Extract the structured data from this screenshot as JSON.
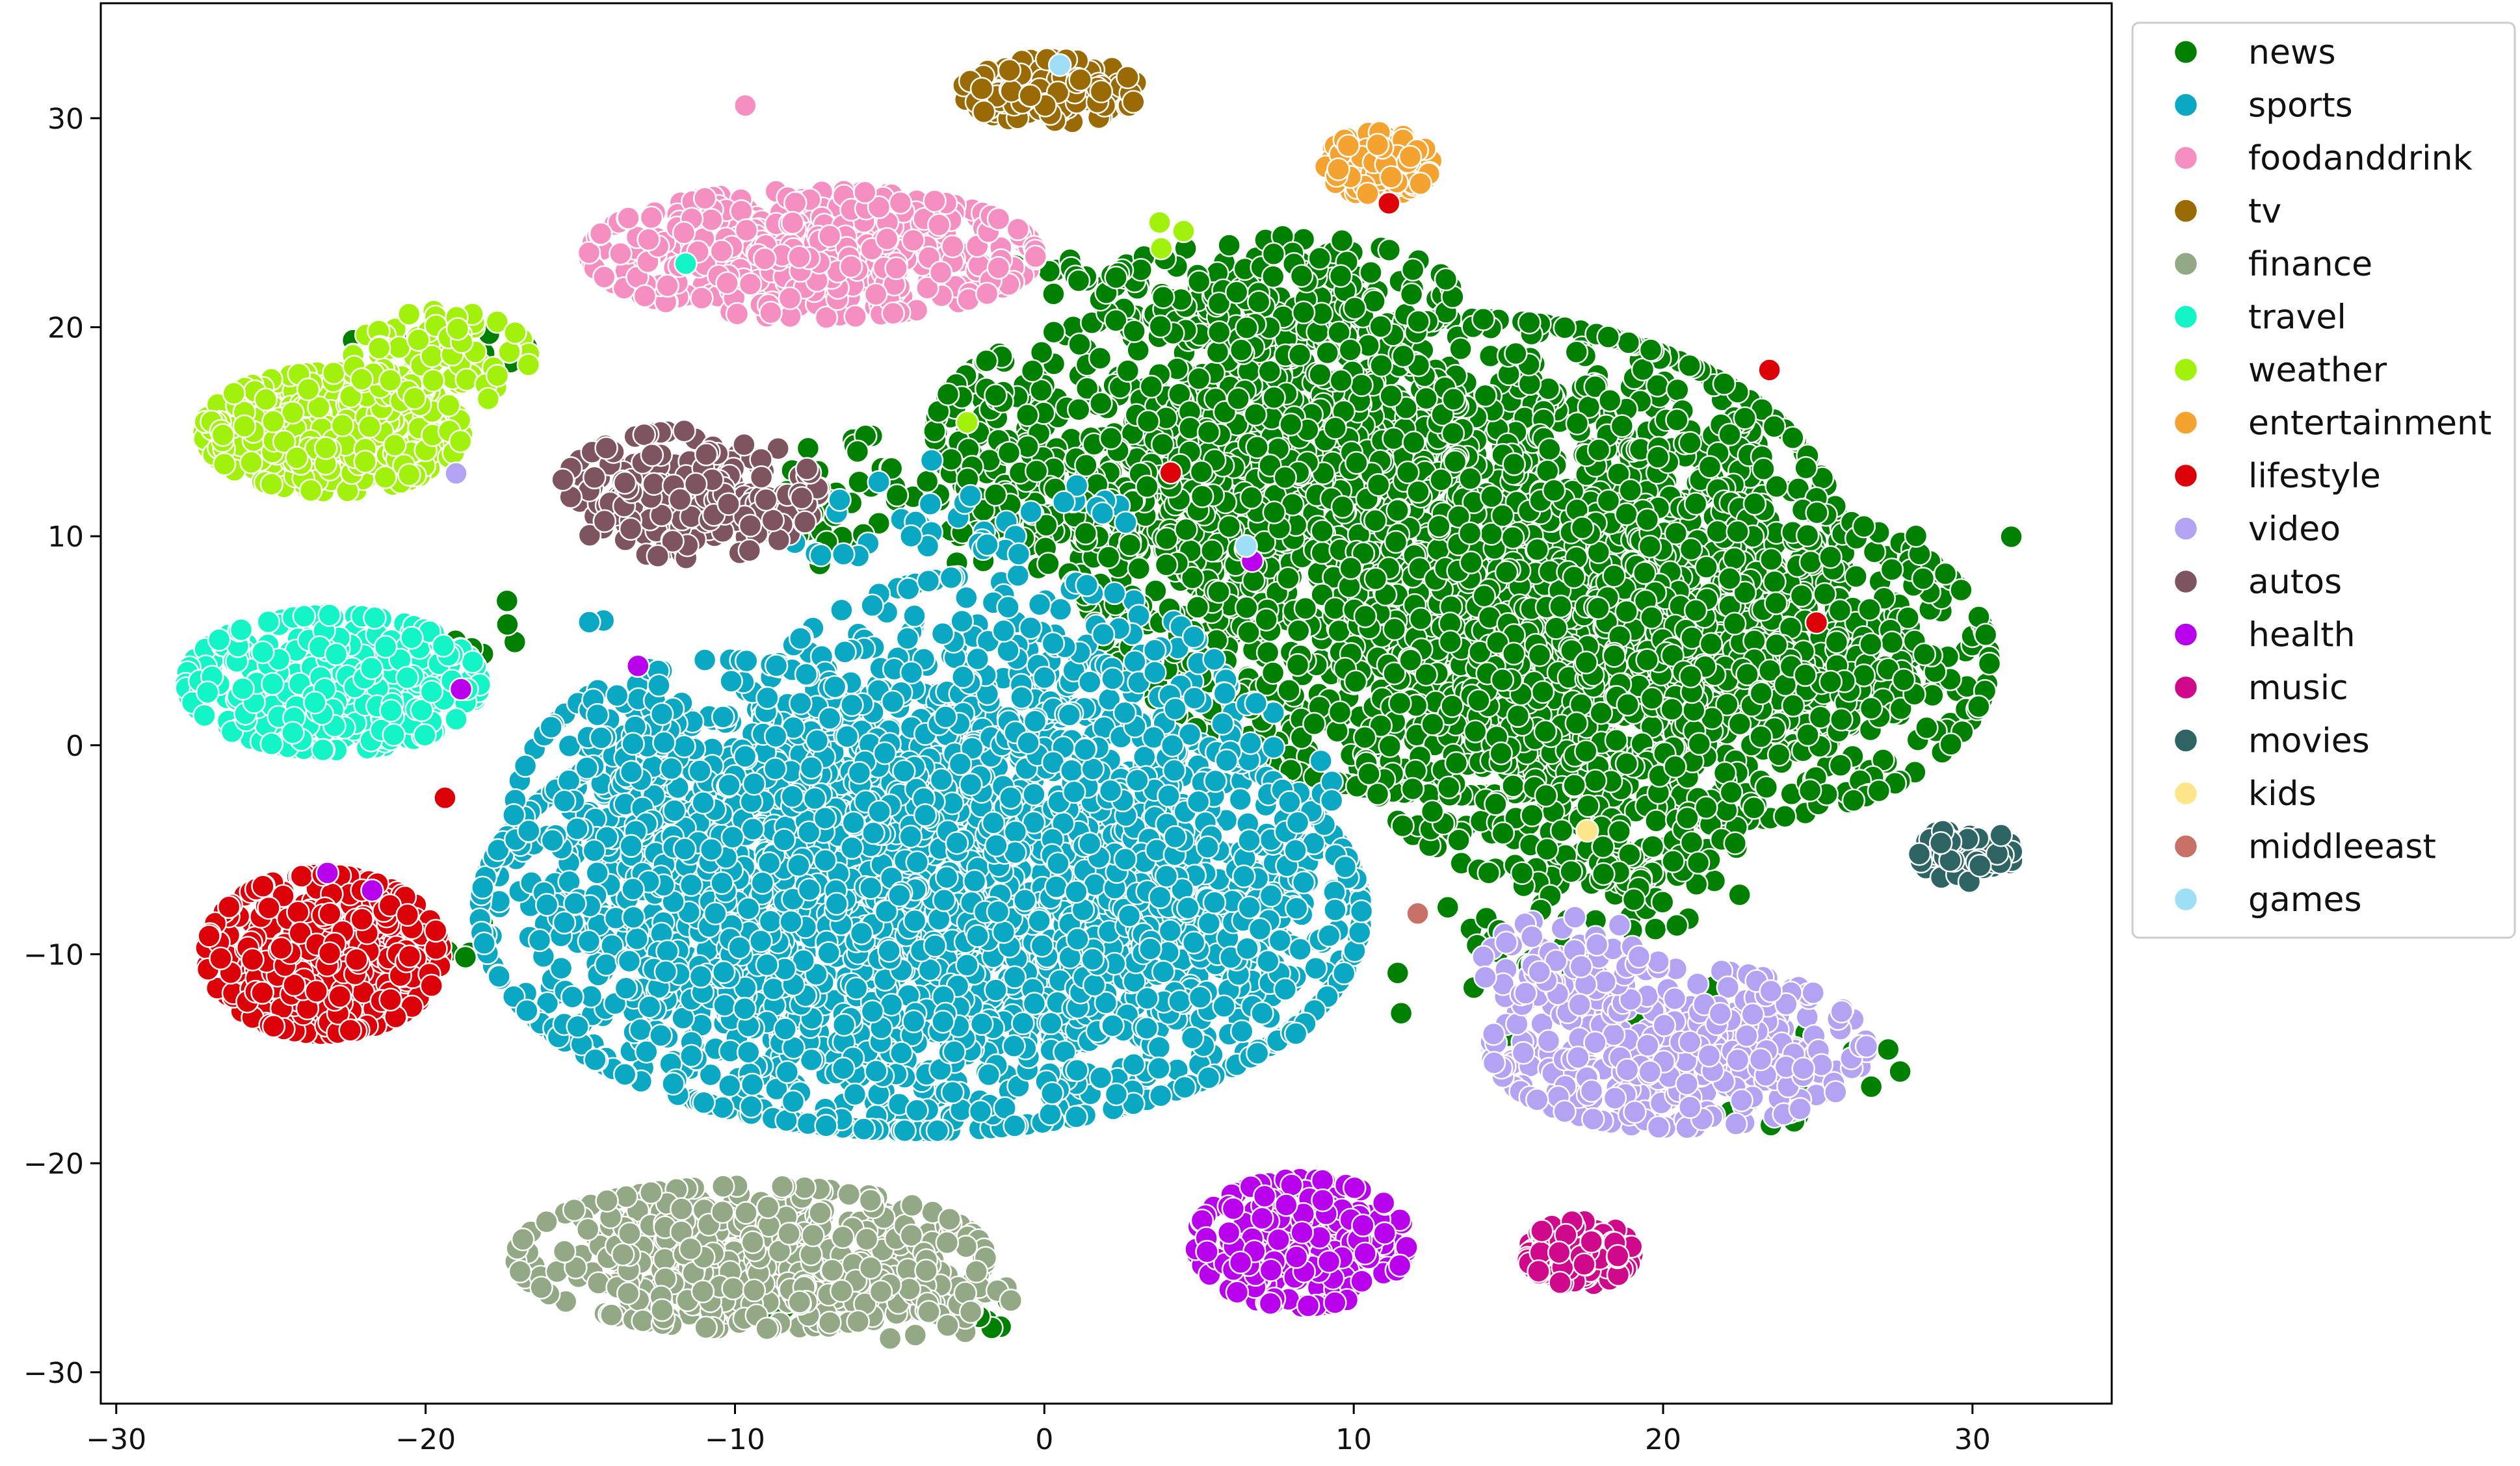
{
  "chart_data": {
    "type": "scatter",
    "title": "",
    "xlabel": "",
    "ylabel": "",
    "xlim": [
      -30.5,
      34.5
    ],
    "ylim": [
      -31.5,
      35.5
    ],
    "x_ticks": [
      -30,
      -20,
      -10,
      0,
      10,
      20,
      30
    ],
    "y_ticks": [
      -30,
      -20,
      -10,
      0,
      10,
      20,
      30
    ],
    "x_tick_labels": [
      "−30",
      "−20",
      "−10",
      "0",
      "10",
      "20",
      "30"
    ],
    "y_tick_labels": [
      "−30",
      "−20",
      "−10",
      "0",
      "10",
      "20",
      "30"
    ],
    "grid": false,
    "legend_position": "upper-right-outside",
    "marker_edge_color": "#ffffff",
    "series": [
      {
        "name": "news",
        "color": "#008000",
        "clusters": [
          {
            "cx": 13.5,
            "cy": 9.0,
            "sx": 6.5,
            "sy": 6.0,
            "n": 2200
          },
          {
            "cx": 5.0,
            "cy": 15.0,
            "sx": 4.5,
            "sy": 3.0,
            "n": 500
          },
          {
            "cx": 22.0,
            "cy": 4.0,
            "sx": 4.5,
            "sy": 4.0,
            "n": 600
          },
          {
            "cx": 17.0,
            "cy": 0.0,
            "sx": 3.5,
            "sy": 3.5,
            "n": 350
          },
          {
            "cx": 7.5,
            "cy": 21.5,
            "sx": 3.0,
            "sy": 1.5,
            "n": 200
          },
          {
            "cx": 26.0,
            "cy": 3.5,
            "sx": 1.5,
            "sy": 1.2,
            "n": 60
          },
          {
            "cx": 19.0,
            "cy": -6.0,
            "sx": 2.0,
            "sy": 1.5,
            "n": 60
          },
          {
            "cx": 1.0,
            "cy": 22.5,
            "sx": 1.2,
            "sy": 0.5,
            "n": 20
          },
          {
            "cx": 0.0,
            "cy": 12.0,
            "sx": 4.5,
            "sy": 2.0,
            "n": 150
          },
          {
            "cx": -7.5,
            "cy": 11.5,
            "sx": 1.0,
            "sy": 1.5,
            "n": 15
          },
          {
            "cx": -18.5,
            "cy": 5.0,
            "sx": 0.8,
            "sy": 1.5,
            "n": 8
          },
          {
            "cx": -19.5,
            "cy": 19.5,
            "sx": 1.5,
            "sy": 1.0,
            "n": 10
          },
          {
            "cx": -3.0,
            "cy": -27.0,
            "sx": 1.0,
            "sy": 0.8,
            "n": 15
          },
          {
            "cx": -8.0,
            "cy": -26.0,
            "sx": 1.5,
            "sy": 1.2,
            "n": 20
          },
          {
            "cx": 16.0,
            "cy": -11.0,
            "sx": 3.0,
            "sy": 2.0,
            "n": 30
          },
          {
            "cx": 24.0,
            "cy": -16.0,
            "sx": 2.0,
            "sy": 1.5,
            "n": 15
          },
          {
            "cx": 31.2,
            "cy": 10.0,
            "sx": 0.1,
            "sy": 0.1,
            "n": 1
          },
          {
            "cx": 28.3,
            "cy": 9.9,
            "sx": 0.1,
            "sy": 0.1,
            "n": 1
          },
          {
            "cx": -18.5,
            "cy": -9.0,
            "sx": 0.5,
            "sy": 0.8,
            "n": 5
          }
        ]
      },
      {
        "name": "sports",
        "color": "#0aa8c3",
        "clusters": [
          {
            "cx": -4.0,
            "cy": -8.0,
            "sx": 7.5,
            "sy": 5.5,
            "n": 2400
          },
          {
            "cx": -1.5,
            "cy": 1.5,
            "sx": 4.0,
            "sy": 3.5,
            "n": 400
          },
          {
            "cx": -10.5,
            "cy": -3.5,
            "sx": 3.5,
            "sy": 4.0,
            "n": 350
          },
          {
            "cx": -13.5,
            "cy": 0.5,
            "sx": 1.2,
            "sy": 1.0,
            "n": 20
          },
          {
            "cx": 5.0,
            "cy": -5.0,
            "sx": 2.5,
            "sy": 4.0,
            "n": 150
          },
          {
            "cx": -3.0,
            "cy": 11.0,
            "sx": 3.0,
            "sy": 1.5,
            "n": 40
          },
          {
            "cx": -15.0,
            "cy": 6.0,
            "sx": 0.5,
            "sy": 0.3,
            "n": 2
          },
          {
            "cx": 8.5,
            "cy": -11.0,
            "sx": 1.0,
            "sy": 1.5,
            "n": 10
          }
        ]
      },
      {
        "name": "foodanddrink",
        "color": "#f58fc2",
        "clusters": [
          {
            "cx": -7.5,
            "cy": 23.5,
            "sx": 3.8,
            "sy": 1.6,
            "n": 520
          },
          {
            "cx": -9.8,
            "cy": 30.6,
            "sx": 0.1,
            "sy": 0.1,
            "n": 1
          }
        ]
      },
      {
        "name": "tv",
        "color": "#9a6a05",
        "clusters": [
          {
            "cx": 0.2,
            "cy": 31.3,
            "sx": 1.5,
            "sy": 0.8,
            "n": 150
          }
        ]
      },
      {
        "name": "finance",
        "color": "#93a884",
        "clusters": [
          {
            "cx": -9.5,
            "cy": -24.5,
            "sx": 4.0,
            "sy": 1.8,
            "n": 520
          },
          {
            "cx": -4.5,
            "cy": -26.5,
            "sx": 1.8,
            "sy": 1.0,
            "n": 80
          }
        ]
      },
      {
        "name": "travel",
        "color": "#13f5c7",
        "clusters": [
          {
            "cx": -23.0,
            "cy": 3.0,
            "sx": 2.5,
            "sy": 1.7,
            "n": 460
          },
          {
            "cx": 18.3,
            "cy": -23.6,
            "sx": 0.1,
            "sy": 0.1,
            "n": 1
          },
          {
            "cx": -11.5,
            "cy": 23.0,
            "sx": 0.1,
            "sy": 0.1,
            "n": 1
          }
        ]
      },
      {
        "name": "weather",
        "color": "#a1f10d",
        "clusters": [
          {
            "cx": -23.0,
            "cy": 15.0,
            "sx": 2.2,
            "sy": 1.5,
            "n": 420
          },
          {
            "cx": -19.5,
            "cy": 18.5,
            "sx": 1.5,
            "sy": 1.2,
            "n": 100
          },
          {
            "cx": 4.0,
            "cy": 24.5,
            "sx": 0.4,
            "sy": 0.4,
            "n": 3
          },
          {
            "cx": 17.5,
            "cy": -10.5,
            "sx": 0.1,
            "sy": 0.1,
            "n": 1
          },
          {
            "cx": -2.5,
            "cy": 15.5,
            "sx": 0.1,
            "sy": 0.1,
            "n": 1
          }
        ]
      },
      {
        "name": "entertainment",
        "color": "#f4a330",
        "clusters": [
          {
            "cx": 10.8,
            "cy": 27.8,
            "sx": 0.9,
            "sy": 0.8,
            "n": 100
          }
        ]
      },
      {
        "name": "lifestyle",
        "color": "#dc0008",
        "clusters": [
          {
            "cx": -23.3,
            "cy": -10.0,
            "sx": 2.0,
            "sy": 2.0,
            "n": 520
          },
          {
            "cx": 23.5,
            "cy": 18.0,
            "sx": 0.1,
            "sy": 0.1,
            "n": 1
          },
          {
            "cx": 25.0,
            "cy": 6.0,
            "sx": 0.1,
            "sy": 0.1,
            "n": 1
          },
          {
            "cx": 11.0,
            "cy": 26.0,
            "sx": 0.1,
            "sy": 0.1,
            "n": 1
          },
          {
            "cx": -19.5,
            "cy": -2.5,
            "sx": 0.1,
            "sy": 0.1,
            "n": 1
          },
          {
            "cx": 4.0,
            "cy": 13.0,
            "sx": 0.1,
            "sy": 0.1,
            "n": 1
          }
        ]
      },
      {
        "name": "video",
        "color": "#b2a3f3",
        "clusters": [
          {
            "cx": 20.5,
            "cy": -14.5,
            "sx": 3.2,
            "sy": 2.0,
            "n": 380
          },
          {
            "cx": 17.0,
            "cy": -10.5,
            "sx": 1.5,
            "sy": 1.2,
            "n": 60
          },
          {
            "cx": -19.0,
            "cy": 13.0,
            "sx": 0.1,
            "sy": 0.1,
            "n": 1
          }
        ]
      },
      {
        "name": "autos",
        "color": "#7e545f",
        "clusters": [
          {
            "cx": -11.5,
            "cy": 12.0,
            "sx": 2.2,
            "sy": 1.6,
            "n": 240
          }
        ]
      },
      {
        "name": "health",
        "color": "#b800ed",
        "clusters": [
          {
            "cx": 8.3,
            "cy": -23.8,
            "sx": 1.8,
            "sy": 1.6,
            "n": 280
          },
          {
            "cx": -21.8,
            "cy": -7.0,
            "sx": 0.1,
            "sy": 0.1,
            "n": 1
          },
          {
            "cx": -23.2,
            "cy": -6.0,
            "sx": 0.1,
            "sy": 0.1,
            "n": 1
          },
          {
            "cx": -18.8,
            "cy": 2.5,
            "sx": 0.1,
            "sy": 0.1,
            "n": 1
          },
          {
            "cx": -13.0,
            "cy": 3.8,
            "sx": 0.1,
            "sy": 0.1,
            "n": 1
          },
          {
            "cx": 6.7,
            "cy": 9.0,
            "sx": 0.1,
            "sy": 0.1,
            "n": 1
          }
        ]
      },
      {
        "name": "music",
        "color": "#d0088b",
        "clusters": [
          {
            "cx": 17.3,
            "cy": -24.3,
            "sx": 0.9,
            "sy": 0.8,
            "n": 140
          }
        ]
      },
      {
        "name": "movies",
        "color": "#2f6464",
        "clusters": [
          {
            "cx": 29.8,
            "cy": -5.2,
            "sx": 0.8,
            "sy": 0.7,
            "n": 70
          }
        ]
      },
      {
        "name": "kids",
        "color": "#fde68a",
        "clusters": [
          {
            "cx": 17.7,
            "cy": -4.2,
            "sx": 0.1,
            "sy": 0.1,
            "n": 1
          }
        ]
      },
      {
        "name": "middleeast",
        "color": "#c97067",
        "clusters": [
          {
            "cx": 12.0,
            "cy": -8.0,
            "sx": 0.1,
            "sy": 0.1,
            "n": 1
          }
        ]
      },
      {
        "name": "games",
        "color": "#9fdef7",
        "clusters": [
          {
            "cx": 0.5,
            "cy": 32.5,
            "sx": 0.1,
            "sy": 0.1,
            "n": 1
          },
          {
            "cx": 6.5,
            "cy": 9.5,
            "sx": 0.1,
            "sy": 0.1,
            "n": 1
          }
        ]
      }
    ]
  }
}
